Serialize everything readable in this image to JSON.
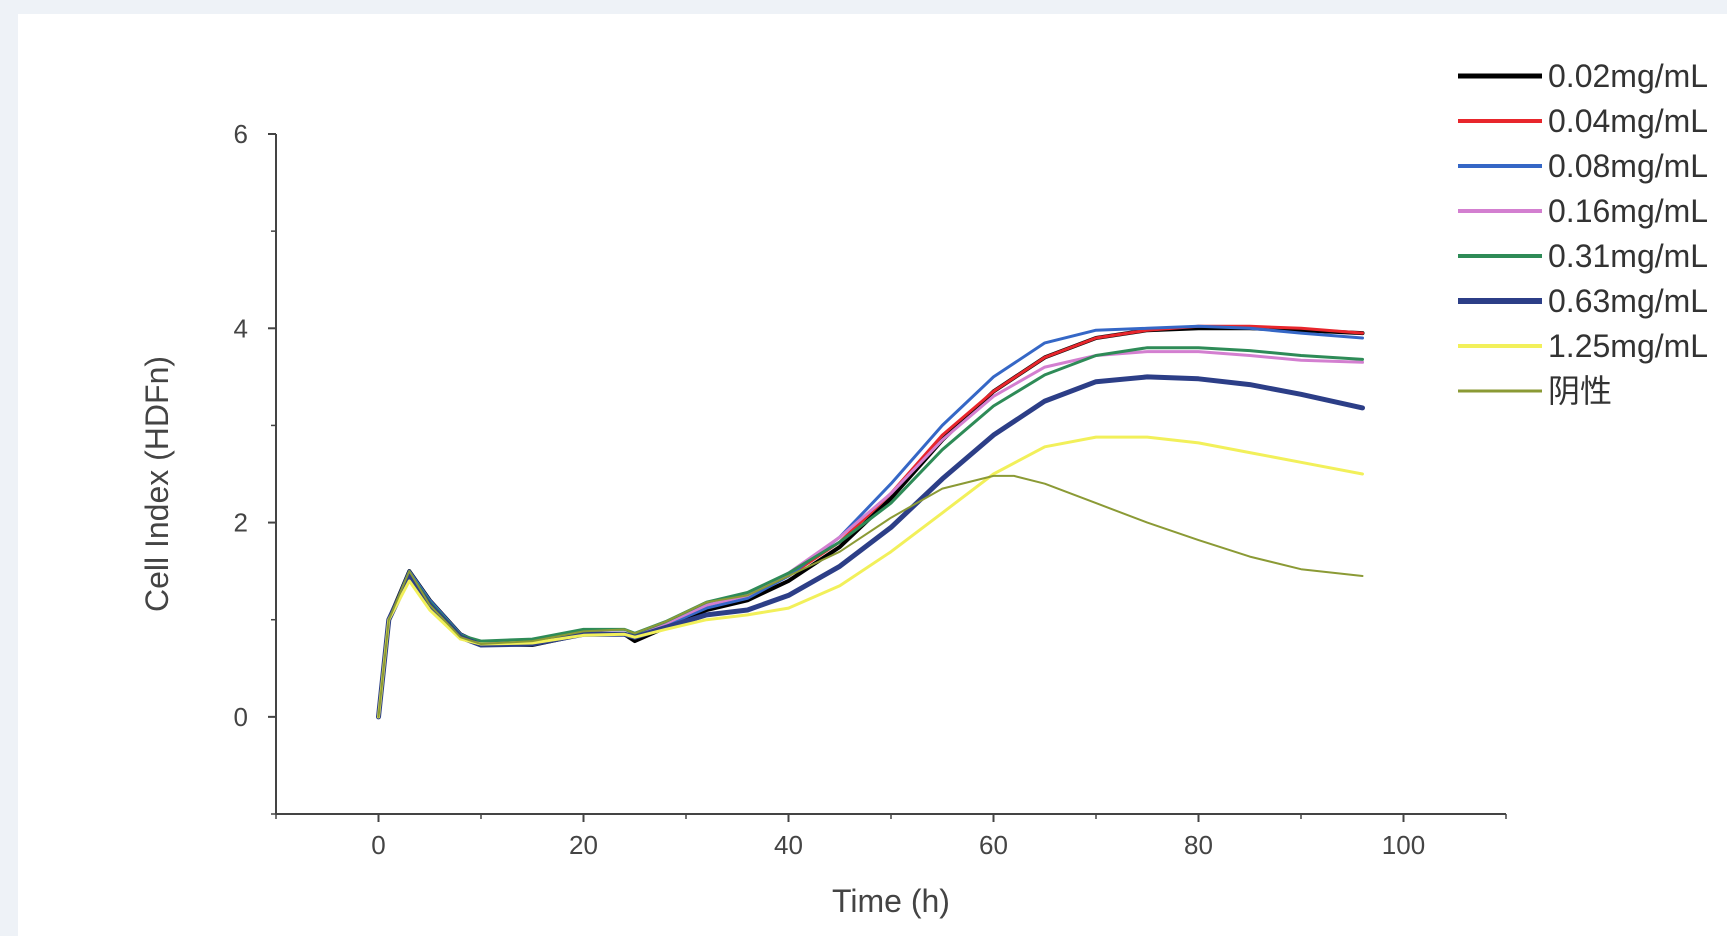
{
  "chart_data": {
    "type": "line",
    "title": "",
    "xlabel": "Time (h)",
    "ylabel": "Cell Index (HDFn)",
    "xlim": [
      -10,
      110
    ],
    "ylim": [
      -1,
      6
    ],
    "xticks": [
      0,
      20,
      40,
      60,
      80,
      100
    ],
    "yticks": [
      0,
      2,
      4,
      6
    ],
    "grid": false,
    "legend_position": "top-right",
    "series": [
      {
        "name": "0.02mg/mL",
        "color": "#000000",
        "width": 4,
        "x": [
          0,
          1,
          3,
          5,
          8,
          10,
          15,
          20,
          24,
          25,
          28,
          32,
          36,
          40,
          45,
          50,
          55,
          60,
          65,
          70,
          75,
          80,
          85,
          90,
          96
        ],
        "y": [
          0,
          1.0,
          1.5,
          1.2,
          0.85,
          0.75,
          0.74,
          0.85,
          0.85,
          0.78,
          0.92,
          1.1,
          1.2,
          1.4,
          1.75,
          2.25,
          2.85,
          3.35,
          3.7,
          3.9,
          3.98,
          4.0,
          4.0,
          3.98,
          3.95
        ]
      },
      {
        "name": "0.04mg/mL",
        "color": "#e8262c",
        "width": 3,
        "x": [
          0,
          1,
          3,
          5,
          8,
          10,
          15,
          20,
          24,
          25,
          28,
          32,
          36,
          40,
          45,
          50,
          55,
          60,
          65,
          70,
          75,
          80,
          85,
          90,
          96
        ],
        "y": [
          0,
          1.0,
          1.45,
          1.15,
          0.82,
          0.74,
          0.75,
          0.86,
          0.86,
          0.82,
          0.95,
          1.15,
          1.25,
          1.45,
          1.8,
          2.3,
          2.9,
          3.35,
          3.7,
          3.9,
          3.98,
          4.02,
          4.02,
          4.0,
          3.95
        ]
      },
      {
        "name": "0.08mg/mL",
        "color": "#3567c6",
        "width": 3,
        "x": [
          0,
          1,
          3,
          5,
          8,
          10,
          15,
          20,
          24,
          25,
          28,
          32,
          36,
          40,
          45,
          50,
          55,
          60,
          65,
          70,
          75,
          80,
          85,
          90,
          96
        ],
        "y": [
          0,
          1.0,
          1.5,
          1.2,
          0.85,
          0.76,
          0.76,
          0.86,
          0.86,
          0.82,
          0.94,
          1.12,
          1.22,
          1.45,
          1.85,
          2.4,
          3.0,
          3.5,
          3.85,
          3.98,
          4.0,
          4.02,
          4.0,
          3.95,
          3.9
        ]
      },
      {
        "name": "0.16mg/mL",
        "color": "#d37fd0",
        "width": 3,
        "x": [
          0,
          1,
          3,
          5,
          8,
          10,
          15,
          20,
          24,
          25,
          28,
          32,
          36,
          40,
          45,
          50,
          55,
          60,
          65,
          70,
          75,
          80,
          85,
          90,
          96
        ],
        "y": [
          0,
          1.0,
          1.45,
          1.15,
          0.82,
          0.76,
          0.76,
          0.86,
          0.86,
          0.84,
          0.96,
          1.15,
          1.25,
          1.48,
          1.85,
          2.3,
          2.85,
          3.3,
          3.6,
          3.72,
          3.76,
          3.76,
          3.72,
          3.67,
          3.65
        ]
      },
      {
        "name": "0.31mg/mL",
        "color": "#2e8b57",
        "width": 3,
        "x": [
          0,
          1,
          3,
          5,
          8,
          10,
          15,
          20,
          24,
          25,
          28,
          32,
          36,
          40,
          45,
          50,
          55,
          60,
          65,
          70,
          75,
          80,
          85,
          90,
          96
        ],
        "y": [
          0,
          1.0,
          1.48,
          1.18,
          0.84,
          0.78,
          0.8,
          0.9,
          0.9,
          0.86,
          0.98,
          1.18,
          1.28,
          1.48,
          1.8,
          2.2,
          2.75,
          3.2,
          3.52,
          3.72,
          3.8,
          3.8,
          3.77,
          3.72,
          3.68
        ]
      },
      {
        "name": "0.63mg/mL",
        "color": "#2c3e87",
        "width": 5,
        "x": [
          0,
          1,
          3,
          5,
          8,
          10,
          15,
          20,
          24,
          25,
          28,
          32,
          36,
          40,
          45,
          50,
          55,
          60,
          65,
          70,
          75,
          80,
          85,
          90,
          96
        ],
        "y": [
          0,
          1.0,
          1.45,
          1.15,
          0.82,
          0.74,
          0.75,
          0.85,
          0.85,
          0.82,
          0.92,
          1.05,
          1.1,
          1.25,
          1.55,
          1.95,
          2.45,
          2.9,
          3.25,
          3.45,
          3.5,
          3.48,
          3.42,
          3.32,
          3.18
        ]
      },
      {
        "name": "1.25mg/mL",
        "color": "#f2f05a",
        "width": 3,
        "x": [
          0,
          1,
          3,
          5,
          8,
          10,
          15,
          20,
          24,
          25,
          28,
          32,
          36,
          40,
          45,
          50,
          55,
          60,
          65,
          70,
          75,
          80,
          85,
          90,
          96
        ],
        "y": [
          0,
          1.0,
          1.4,
          1.1,
          0.8,
          0.75,
          0.76,
          0.84,
          0.85,
          0.82,
          0.9,
          1.0,
          1.05,
          1.12,
          1.35,
          1.7,
          2.1,
          2.5,
          2.78,
          2.88,
          2.88,
          2.82,
          2.72,
          2.62,
          2.5
        ]
      },
      {
        "name": "阴性",
        "color": "#8b9a35",
        "width": 2,
        "x": [
          0,
          1,
          3,
          5,
          8,
          10,
          15,
          20,
          24,
          25,
          28,
          32,
          36,
          40,
          45,
          50,
          55,
          60,
          62,
          65,
          70,
          75,
          80,
          85,
          90,
          96
        ],
        "y": [
          0,
          1.0,
          1.5,
          1.15,
          0.82,
          0.75,
          0.78,
          0.88,
          0.9,
          0.86,
          0.98,
          1.18,
          1.25,
          1.45,
          1.7,
          2.05,
          2.35,
          2.48,
          2.48,
          2.4,
          2.2,
          2.0,
          1.82,
          1.65,
          1.52,
          1.45
        ]
      }
    ]
  }
}
